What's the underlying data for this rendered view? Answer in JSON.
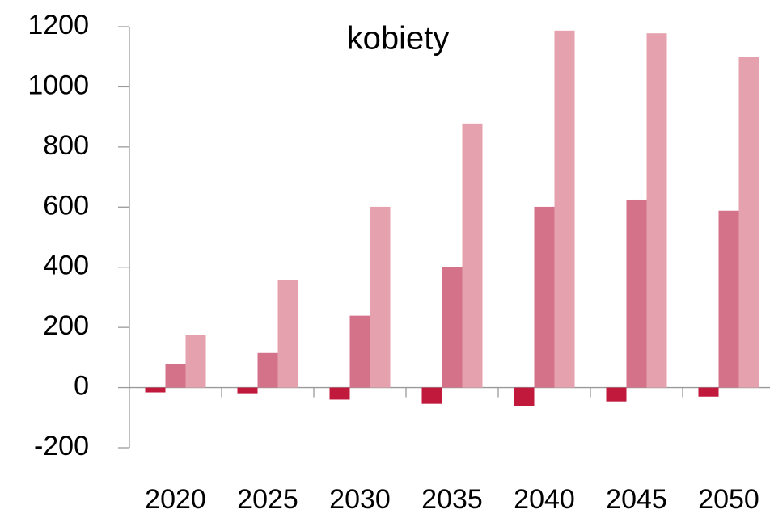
{
  "chart_data": {
    "type": "bar",
    "title": "kobiety",
    "categories": [
      "2020",
      "2025",
      "2030",
      "2035",
      "2040",
      "2045",
      "2050"
    ],
    "series": [
      {
        "color": "#c0193c",
        "values": [
          -16,
          -19,
          -40,
          -54,
          -62,
          -46,
          -30
        ]
      },
      {
        "color": "#d4728a",
        "values": [
          78,
          115,
          239,
          400,
          601,
          625,
          588
        ]
      },
      {
        "color": "#e6a1ae",
        "values": [
          174,
          357,
          601,
          878,
          1187,
          1178,
          1100
        ]
      }
    ],
    "ylim": [
      -200,
      1200
    ],
    "yticks": [
      -200,
      0,
      200,
      400,
      600,
      800,
      1000,
      1200
    ]
  }
}
